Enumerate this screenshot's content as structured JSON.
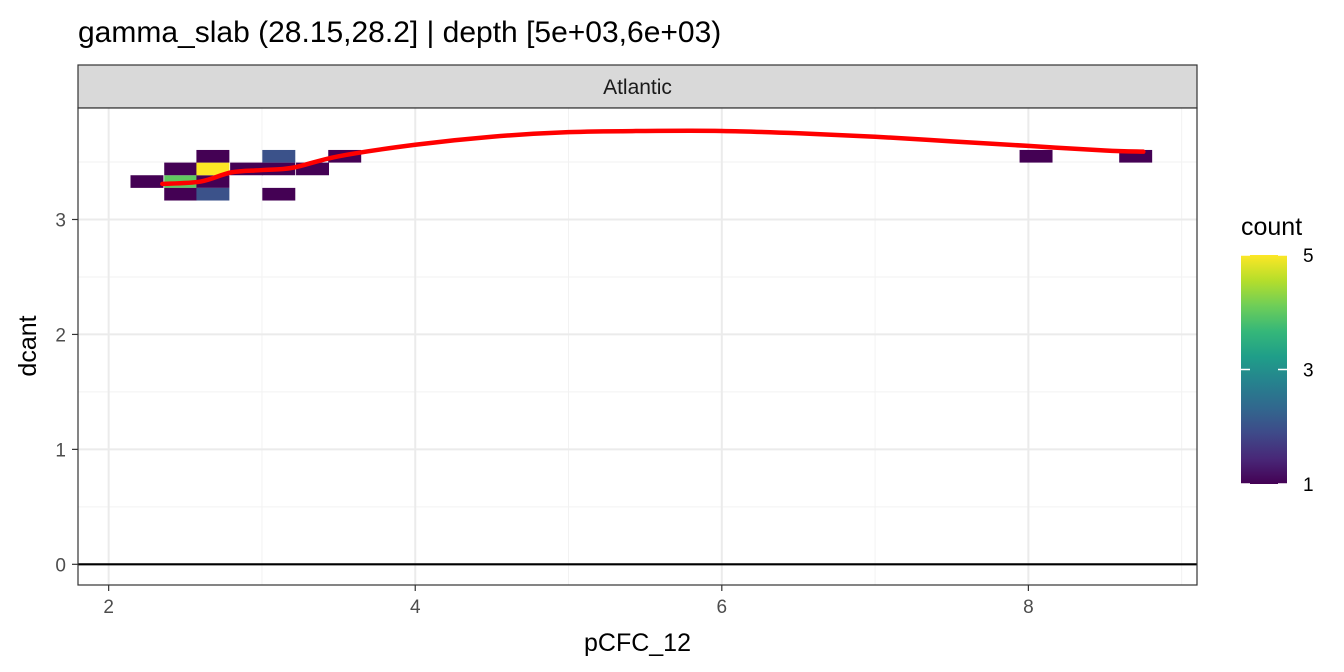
{
  "title": "gamma_slab (28.15,28.2] | depth [5e+03,6e+03)",
  "chart_data": {
    "type": "heatmap",
    "facet_label": "Atlantic",
    "xlabel": "pCFC_12",
    "ylabel": "dcant",
    "xlim": [
      1.8,
      9.1
    ],
    "ylim": [
      -0.18,
      3.97
    ],
    "x_ticks": [
      2,
      4,
      6,
      8
    ],
    "x_tick_labels": [
      "2",
      "4",
      "6",
      "8"
    ],
    "y_ticks": [
      0,
      1,
      2,
      3
    ],
    "y_tick_labels": [
      "0",
      "1",
      "2",
      "3"
    ],
    "grid": true,
    "bin_width": 0.215,
    "bin_height": 0.11,
    "bins": [
      {
        "x": 2.25,
        "y": 3.33,
        "count": 1
      },
      {
        "x": 2.47,
        "y": 3.33,
        "count": 4
      },
      {
        "x": 2.68,
        "y": 3.33,
        "count": 1
      },
      {
        "x": 2.47,
        "y": 3.44,
        "count": 1
      },
      {
        "x": 2.68,
        "y": 3.44,
        "count": 5
      },
      {
        "x": 2.9,
        "y": 3.44,
        "count": 1
      },
      {
        "x": 3.11,
        "y": 3.44,
        "count": 1
      },
      {
        "x": 3.33,
        "y": 3.44,
        "count": 1
      },
      {
        "x": 2.68,
        "y": 3.55,
        "count": 1
      },
      {
        "x": 3.11,
        "y": 3.55,
        "count": 2
      },
      {
        "x": 3.54,
        "y": 3.55,
        "count": 1
      },
      {
        "x": 2.47,
        "y": 3.22,
        "count": 1
      },
      {
        "x": 2.68,
        "y": 3.22,
        "count": 2
      },
      {
        "x": 3.11,
        "y": 3.22,
        "count": 1
      },
      {
        "x": 8.05,
        "y": 3.55,
        "count": 1
      },
      {
        "x": 8.7,
        "y": 3.55,
        "count": 1
      }
    ],
    "smooth_line": {
      "color": "#ff0000",
      "x": [
        2.35,
        2.6,
        2.8,
        3.0,
        3.2,
        3.5,
        4.0,
        4.5,
        5.0,
        5.5,
        6.0,
        6.5,
        7.0,
        7.5,
        8.0,
        8.5,
        8.75
      ],
      "y": [
        3.31,
        3.33,
        3.41,
        3.43,
        3.45,
        3.55,
        3.65,
        3.72,
        3.76,
        3.77,
        3.77,
        3.75,
        3.72,
        3.68,
        3.64,
        3.6,
        3.59
      ]
    },
    "hline": {
      "y": 0,
      "color": "#000000"
    },
    "legend": {
      "title": "count",
      "placement": "right",
      "min": 1,
      "max": 5,
      "breaks": [
        1,
        3,
        5
      ],
      "break_labels": [
        "1",
        "3",
        "5"
      ],
      "colormap": "viridis",
      "color_stops": [
        "#440154",
        "#482878",
        "#3e4a89",
        "#31688e",
        "#26828e",
        "#1f9e89",
        "#35b779",
        "#6ece58",
        "#b5de2b",
        "#fde725"
      ]
    }
  }
}
